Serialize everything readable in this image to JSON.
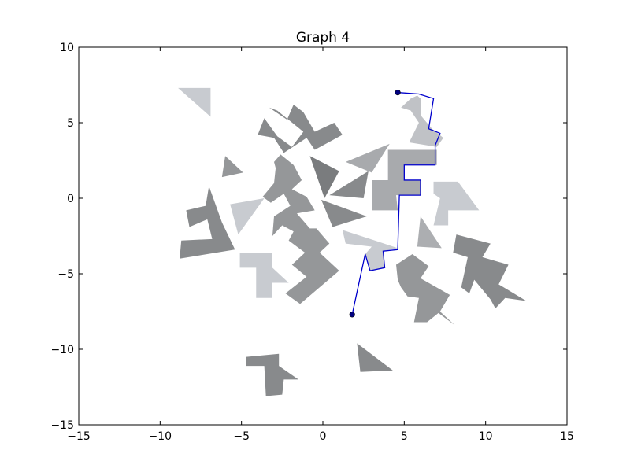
{
  "chart_data": {
    "type": "line",
    "title": "Graph 4",
    "xlabel": "",
    "ylabel": "",
    "xlim": [
      -15,
      15
    ],
    "ylim": [
      -15,
      10
    ],
    "grid": false,
    "x_ticks": [
      -15,
      -10,
      -5,
      0,
      5,
      10,
      15
    ],
    "y_ticks": [
      -15,
      -10,
      -5,
      0,
      5,
      10
    ],
    "x_tick_labels": [
      "−15",
      "−10",
      "−5",
      "0",
      "5",
      "10",
      "15"
    ],
    "y_tick_labels": [
      "−15",
      "−10",
      "−5",
      "0",
      "5",
      "10"
    ],
    "path_color": "#0000cc",
    "endpoint_color": "#00007f",
    "path": [
      [
        1.8,
        -7.7
      ],
      [
        2.6,
        -3.7
      ],
      [
        2.9,
        -4.8
      ],
      [
        3.8,
        -4.6
      ],
      [
        3.7,
        -3.5
      ],
      [
        4.6,
        -3.4
      ],
      [
        4.7,
        0.2
      ],
      [
        6.0,
        0.2
      ],
      [
        6.0,
        1.2
      ],
      [
        5.0,
        1.2
      ],
      [
        5.0,
        2.2
      ],
      [
        6.9,
        2.2
      ],
      [
        6.9,
        3.5
      ],
      [
        7.2,
        4.3
      ],
      [
        6.5,
        4.6
      ],
      [
        6.8,
        6.6
      ],
      [
        5.9,
        6.9
      ],
      [
        4.6,
        7.0
      ]
    ],
    "endpoints": [
      [
        1.8,
        -7.7
      ],
      [
        4.6,
        7.0
      ]
    ],
    "obstacles": [
      {
        "color": "#c8cbd0",
        "points": [
          [
            -8.9,
            7.3
          ],
          [
            -6.9,
            7.3
          ],
          [
            -6.9,
            5.4
          ]
        ]
      },
      {
        "color": "#888a8c",
        "points": [
          [
            -2.8,
            5.8
          ],
          [
            -1.2,
            4.4
          ],
          [
            -1.9,
            3.4
          ],
          [
            -2.8,
            4.1
          ],
          [
            -3.6,
            5.3
          ],
          [
            -4.0,
            4.2
          ],
          [
            -3.0,
            4.0
          ],
          [
            -2.4,
            3.0
          ],
          [
            -1.0,
            4.0
          ],
          [
            -0.5,
            3.2
          ],
          [
            1.2,
            4.2
          ],
          [
            0.7,
            5.0
          ],
          [
            -0.5,
            4.4
          ],
          [
            -1.2,
            5.7
          ],
          [
            -1.8,
            6.2
          ],
          [
            -2.2,
            5.2
          ],
          [
            -3.3,
            6.0
          ]
        ]
      },
      {
        "color": "#c0c2c6",
        "points": [
          [
            5.4,
            6.6
          ],
          [
            5.8,
            6.8
          ],
          [
            6.0,
            6.6
          ],
          [
            6.0,
            5.5
          ],
          [
            6.7,
            4.6
          ],
          [
            7.4,
            4.0
          ],
          [
            7.0,
            3.4
          ],
          [
            5.3,
            3.7
          ],
          [
            5.9,
            5.0
          ],
          [
            5.4,
            5.8
          ],
          [
            4.8,
            6.0
          ]
        ]
      },
      {
        "color": "#959799",
        "points": [
          [
            -6.2,
            1.4
          ],
          [
            -4.9,
            1.7
          ],
          [
            -6.0,
            2.8
          ]
        ]
      },
      {
        "color": "#959799",
        "points": [
          [
            -2.6,
            2.9
          ],
          [
            -1.8,
            2.2
          ],
          [
            -1.3,
            1.2
          ],
          [
            -1.9,
            0.6
          ],
          [
            -1.0,
            0.1
          ],
          [
            -0.5,
            -0.8
          ],
          [
            -1.6,
            -1.0
          ],
          [
            -0.8,
            -2.0
          ],
          [
            -0.4,
            -2.0
          ],
          [
            0.4,
            -3.0
          ],
          [
            -0.2,
            -3.6
          ],
          [
            1.0,
            -4.8
          ],
          [
            -1.4,
            -7.0
          ],
          [
            -2.3,
            -6.3
          ],
          [
            -1.0,
            -5.2
          ],
          [
            -1.9,
            -4.4
          ],
          [
            -1.1,
            -3.6
          ],
          [
            -2.1,
            -2.8
          ],
          [
            -1.8,
            -2.2
          ],
          [
            -2.5,
            -1.8
          ],
          [
            -3.1,
            -2.5
          ],
          [
            -3.0,
            -1.2
          ],
          [
            -2.0,
            -0.5
          ],
          [
            -2.4,
            0.3
          ],
          [
            -3.2,
            -0.3
          ],
          [
            -3.7,
            0.1
          ],
          [
            -3.0,
            1.0
          ],
          [
            -2.9,
            2.0
          ],
          [
            -3.0,
            2.4
          ]
        ]
      },
      {
        "color": "#7a7c7e",
        "points": [
          [
            -0.8,
            2.8
          ],
          [
            1.0,
            1.8
          ],
          [
            0.1,
            0.0
          ]
        ]
      },
      {
        "color": "#a8aaad",
        "points": [
          [
            1.4,
            2.4
          ],
          [
            4.1,
            3.6
          ],
          [
            3.0,
            1.7
          ]
        ]
      },
      {
        "color": "#888a8c",
        "points": [
          [
            0.4,
            0.2
          ],
          [
            2.8,
            1.8
          ],
          [
            2.5,
            0.0
          ]
        ]
      },
      {
        "color": "#a8aaad",
        "points": [
          [
            3.0,
            1.2
          ],
          [
            4.0,
            1.2
          ],
          [
            4.0,
            3.2
          ],
          [
            7.0,
            3.2
          ],
          [
            7.0,
            2.2
          ],
          [
            5.0,
            2.2
          ],
          [
            5.0,
            1.2
          ],
          [
            6.0,
            1.2
          ],
          [
            6.0,
            0.2
          ],
          [
            4.5,
            0.2
          ],
          [
            4.6,
            -0.8
          ],
          [
            3.0,
            -0.8
          ]
        ]
      },
      {
        "color": "#c8cbd0",
        "points": [
          [
            6.8,
            1.1
          ],
          [
            8.3,
            1.1
          ],
          [
            9.6,
            -0.8
          ],
          [
            7.7,
            -0.8
          ],
          [
            7.7,
            -1.8
          ],
          [
            6.8,
            -1.8
          ],
          [
            7.2,
            0.0
          ],
          [
            6.8,
            0.3
          ]
        ]
      },
      {
        "color": "#888a8c",
        "points": [
          [
            -7.0,
            0.8
          ],
          [
            -6.2,
            -1.6
          ],
          [
            -5.4,
            -3.4
          ],
          [
            -8.8,
            -4.0
          ],
          [
            -8.7,
            -2.8
          ],
          [
            -6.8,
            -2.7
          ],
          [
            -7.1,
            -1.4
          ],
          [
            -8.2,
            -1.9
          ],
          [
            -8.4,
            -0.8
          ],
          [
            -7.2,
            -0.5
          ]
        ]
      },
      {
        "color": "#c8cbd0",
        "points": [
          [
            -5.7,
            -0.4
          ],
          [
            -3.6,
            0.0
          ],
          [
            -5.2,
            -2.4
          ]
        ]
      },
      {
        "color": "#888a8c",
        "points": [
          [
            -0.1,
            -0.1
          ],
          [
            2.7,
            -1.2
          ],
          [
            0.6,
            -1.9
          ]
        ]
      },
      {
        "color": "#c8cbd0",
        "points": [
          [
            1.2,
            -2.1
          ],
          [
            3.2,
            -2.8
          ],
          [
            4.6,
            -3.3
          ],
          [
            3.7,
            -3.5
          ],
          [
            3.8,
            -4.6
          ],
          [
            2.9,
            -4.8
          ],
          [
            2.6,
            -3.7
          ],
          [
            3.0,
            -3.2
          ],
          [
            1.4,
            -3.0
          ]
        ]
      },
      {
        "color": "#acaeb1",
        "points": [
          [
            6.0,
            -1.2
          ],
          [
            7.3,
            -3.3
          ],
          [
            5.8,
            -3.2
          ]
        ]
      },
      {
        "color": "#888a8c",
        "points": [
          [
            8.2,
            -2.4
          ],
          [
            10.3,
            -3.0
          ],
          [
            9.8,
            -3.9
          ],
          [
            11.4,
            -4.4
          ],
          [
            10.8,
            -5.7
          ],
          [
            12.5,
            -6.8
          ],
          [
            11.2,
            -6.6
          ],
          [
            10.6,
            -7.3
          ],
          [
            10.3,
            -6.7
          ],
          [
            9.3,
            -5.4
          ],
          [
            9.0,
            -6.3
          ],
          [
            8.5,
            -5.9
          ],
          [
            8.9,
            -3.9
          ],
          [
            8.0,
            -3.6
          ]
        ]
      },
      {
        "color": "#959799",
        "points": [
          [
            5.5,
            -3.7
          ],
          [
            6.5,
            -4.5
          ],
          [
            6.0,
            -5.3
          ],
          [
            7.8,
            -6.4
          ],
          [
            7.2,
            -7.5
          ],
          [
            8.1,
            -8.4
          ],
          [
            7.1,
            -7.6
          ],
          [
            6.4,
            -8.2
          ],
          [
            5.6,
            -8.2
          ],
          [
            5.9,
            -6.6
          ],
          [
            5.2,
            -6.5
          ],
          [
            4.8,
            -5.9
          ],
          [
            4.6,
            -5.4
          ],
          [
            4.5,
            -4.4
          ]
        ]
      },
      {
        "color": "#c8cbd0",
        "points": [
          [
            -5.1,
            -3.6
          ],
          [
            -3.1,
            -3.6
          ],
          [
            -3.1,
            -4.6
          ],
          [
            -2.1,
            -5.6
          ],
          [
            -3.1,
            -5.6
          ],
          [
            -3.1,
            -6.6
          ],
          [
            -4.1,
            -6.6
          ],
          [
            -4.1,
            -4.6
          ],
          [
            -5.1,
            -4.6
          ]
        ]
      },
      {
        "color": "#888a8c",
        "points": [
          [
            -4.7,
            -10.5
          ],
          [
            -2.7,
            -10.3
          ],
          [
            -2.7,
            -11.1
          ],
          [
            -1.5,
            -12.0
          ],
          [
            -2.4,
            -12.0
          ],
          [
            -2.5,
            -13.0
          ],
          [
            -3.5,
            -13.1
          ],
          [
            -3.6,
            -11.1
          ],
          [
            -4.7,
            -11.1
          ]
        ]
      },
      {
        "color": "#888a8c",
        "points": [
          [
            2.1,
            -9.6
          ],
          [
            4.3,
            -11.4
          ],
          [
            2.3,
            -11.5
          ]
        ]
      }
    ]
  }
}
